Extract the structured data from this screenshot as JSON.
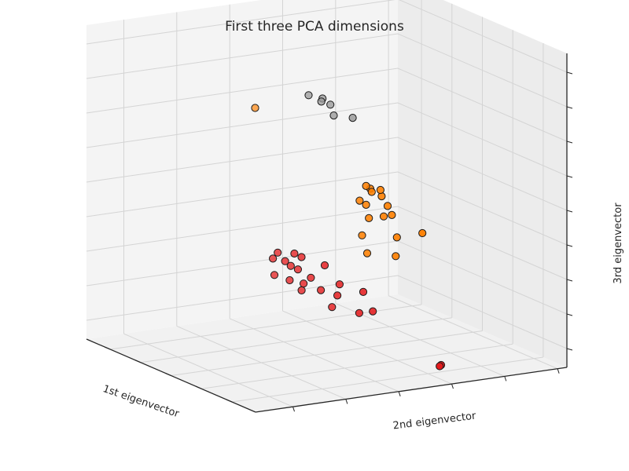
{
  "chart_data": {
    "type": "scatter",
    "projection": "3d",
    "title": "First three PCA dimensions",
    "xlabel": "1st eigenvector",
    "ylabel": "2nd eigenvector",
    "zlabel": "3rd eigenvector",
    "tick_labels_visible": false,
    "grid": true,
    "legend": false,
    "colormap": "Set1",
    "colors": {
      "red": "#e41a1c",
      "orange": "#ff7f00",
      "gray": "#999999",
      "edge": "#1a1a1a"
    },
    "series": [
      {
        "color": "#e41a1c",
        "points": [
          {
            "x": 0.51,
            "y": 0.61,
            "z": 0.11
          },
          {
            "x": 0.45,
            "y": 0.49,
            "z": 0.16
          },
          {
            "x": 0.54,
            "y": 0.67,
            "z": 0.1
          },
          {
            "x": 0.4,
            "y": 0.48,
            "z": 0.21
          },
          {
            "x": 0.56,
            "y": 0.65,
            "z": 0.16
          },
          {
            "x": 0.35,
            "y": 0.4,
            "z": 0.25
          },
          {
            "x": 0.28,
            "y": 0.3,
            "z": 0.28
          },
          {
            "x": 0.25,
            "y": 0.29,
            "z": 0.31
          },
          {
            "x": 0.35,
            "y": 0.46,
            "z": 0.26
          },
          {
            "x": 0.17,
            "y": 0.27,
            "z": 0.35
          },
          {
            "x": 0.24,
            "y": 0.24,
            "z": 0.33
          },
          {
            "x": 0.22,
            "y": 0.18,
            "z": 0.36
          },
          {
            "x": 0.21,
            "y": 0.25,
            "z": 0.37
          },
          {
            "x": 0.18,
            "y": 0.32,
            "z": 0.38
          },
          {
            "x": 0.16,
            "y": 0.2,
            "z": 0.4
          },
          {
            "x": 0.17,
            "y": 0.24,
            "z": 0.42
          },
          {
            "x": 0.12,
            "y": 0.16,
            "z": 0.43
          },
          {
            "x": 0.12,
            "y": 0.19,
            "z": 0.45
          },
          {
            "x": 0.1,
            "y": 0.11,
            "z": 0.45
          },
          {
            "x": 0.09,
            "y": 0.12,
            "z": 0.47
          },
          {
            "x": 0.2,
            "y": 0.7,
            "z": 0.0
          },
          {
            "x": 0.21,
            "y": 0.71,
            "z": 0.0
          }
        ]
      },
      {
        "color": "#ff7f00",
        "points": [
          {
            "x": 0.61,
            "y": 0.33,
            "z": 0.78
          },
          {
            "x": 0.6,
            "y": 0.66,
            "z": 0.44
          },
          {
            "x": 0.58,
            "y": 0.67,
            "z": 0.49
          },
          {
            "x": 0.61,
            "y": 0.7,
            "z": 0.47
          },
          {
            "x": 0.55,
            "y": 0.7,
            "z": 0.48
          },
          {
            "x": 0.58,
            "y": 0.67,
            "z": 0.43
          },
          {
            "x": 0.51,
            "y": 0.65,
            "z": 0.49
          },
          {
            "x": 0.58,
            "y": 0.72,
            "z": 0.45
          },
          {
            "x": 0.6,
            "y": 0.75,
            "z": 0.41
          },
          {
            "x": 0.6,
            "y": 0.69,
            "z": 0.38
          },
          {
            "x": 0.49,
            "y": 0.72,
            "z": 0.34
          },
          {
            "x": 0.63,
            "y": 0.78,
            "z": 0.37
          },
          {
            "x": 0.56,
            "y": 0.84,
            "z": 0.32
          },
          {
            "x": 0.66,
            "y": 0.77,
            "z": 0.36
          },
          {
            "x": 0.53,
            "y": 0.63,
            "z": 0.35
          },
          {
            "x": 0.5,
            "y": 0.63,
            "z": 0.3
          },
          {
            "x": 0.46,
            "y": 0.7,
            "z": 0.29
          }
        ]
      },
      {
        "color": "#999999",
        "points": [
          {
            "x": 0.92,
            "y": 0.67,
            "z": 0.7
          },
          {
            "x": 0.9,
            "y": 0.7,
            "z": 0.68
          },
          {
            "x": 0.93,
            "y": 0.72,
            "z": 0.68
          },
          {
            "x": 0.92,
            "y": 0.74,
            "z": 0.66
          },
          {
            "x": 0.9,
            "y": 0.74,
            "z": 0.63
          },
          {
            "x": 0.88,
            "y": 0.79,
            "z": 0.62
          }
        ]
      }
    ]
  }
}
